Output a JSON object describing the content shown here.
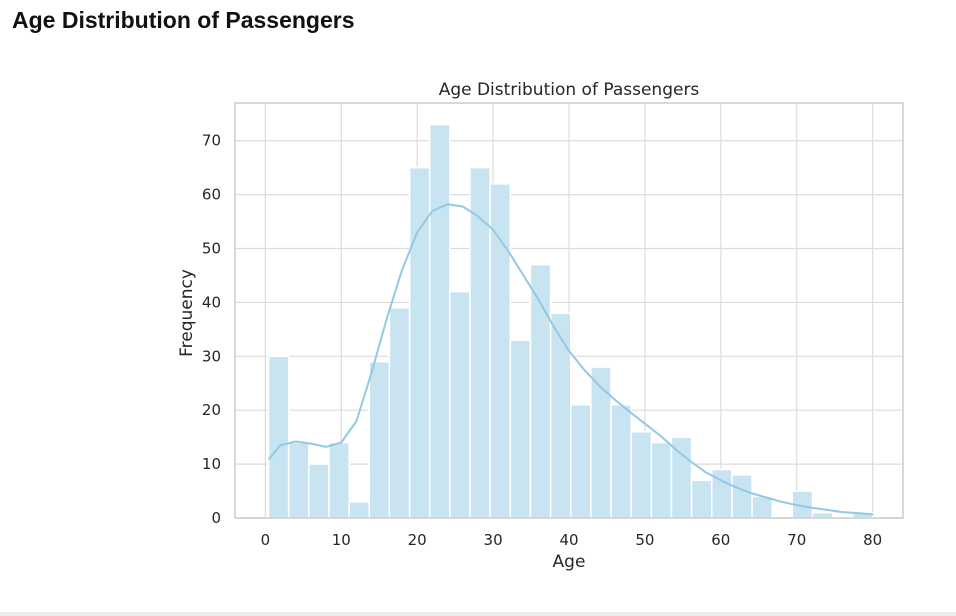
{
  "page": {
    "heading": "Age Distribution of Passengers"
  },
  "chart_data": {
    "type": "bar",
    "title": "Age Distribution of Passengers",
    "xlabel": "Age",
    "ylabel": "Frequency",
    "xlim": [
      -4,
      84
    ],
    "ylim": [
      0,
      77
    ],
    "xticks": [
      0,
      10,
      20,
      30,
      40,
      50,
      60,
      70,
      80
    ],
    "yticks": [
      0,
      10,
      20,
      30,
      40,
      50,
      60,
      70
    ],
    "grid": true,
    "bin_edges": [
      0.42,
      3.07,
      5.73,
      8.38,
      11.04,
      13.69,
      16.34,
      19.0,
      21.65,
      24.31,
      26.96,
      29.61,
      32.27,
      34.92,
      37.58,
      40.23,
      42.88,
      45.54,
      48.19,
      50.85,
      53.5,
      56.15,
      58.81,
      61.46,
      64.12,
      66.77,
      69.42,
      72.08,
      74.73,
      77.39,
      80.04
    ],
    "values": [
      30,
      14,
      10,
      14,
      3,
      29,
      39,
      65,
      73,
      42,
      65,
      62,
      33,
      47,
      38,
      21,
      28,
      21,
      16,
      14,
      15,
      7,
      9,
      8,
      4,
      0,
      5,
      1,
      0,
      1
    ],
    "kde": {
      "x": [
        0.5,
        2,
        4,
        6,
        8,
        10,
        12,
        14,
        16,
        18,
        20,
        22,
        24,
        26,
        28,
        30,
        32,
        34,
        36,
        38,
        40,
        42,
        44,
        46,
        48,
        50,
        52,
        54,
        56,
        58,
        60,
        62,
        64,
        66,
        68,
        70,
        72,
        74,
        76,
        78,
        80
      ],
      "y": [
        11,
        13.5,
        14.2,
        13.8,
        13.2,
        14,
        18,
        27,
        37,
        46,
        53,
        57,
        58.2,
        57.8,
        56,
        53.5,
        49.5,
        45,
        40.5,
        35.5,
        31,
        27.5,
        24.5,
        22,
        19.7,
        17.5,
        15.3,
        12.8,
        10.5,
        8.5,
        7,
        5.7,
        4.6,
        3.8,
        3.0,
        2.4,
        1.9,
        1.5,
        1.1,
        0.9,
        0.7
      ]
    },
    "colors": {
      "bar_fill": "#c9e4f1",
      "bar_edge": "#ffffff",
      "kde_line": "#93c9e3",
      "grid": "#dcdcdc",
      "frame": "#cccccc"
    }
  }
}
